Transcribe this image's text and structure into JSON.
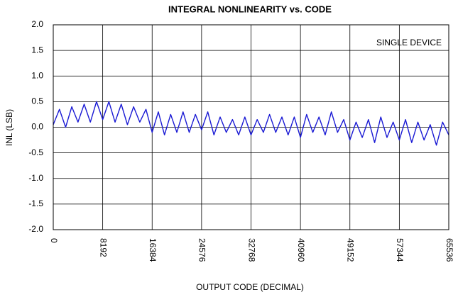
{
  "chart_data": {
    "type": "line",
    "title": "INTEGRAL NONLINEARITY vs. CODE",
    "annotation": "SINGLE DEVICE",
    "xlabel": "OUTPUT CODE (DECIMAL)",
    "ylabel": "INL (LSB)",
    "xlim": [
      0,
      65536
    ],
    "ylim": [
      -2,
      2
    ],
    "xticks": [
      0,
      8192,
      16384,
      24576,
      32768,
      40960,
      49152,
      57344,
      65536
    ],
    "yticks": [
      {
        "value": 2,
        "label": "2.0"
      },
      1.5,
      {
        "value": 1,
        "label": "1.0"
      },
      0.5,
      {
        "value": 0,
        "label": "0.0"
      },
      -0.5,
      {
        "value": -1,
        "label": "-1.0"
      },
      -1.5,
      {
        "value": -2,
        "label": "-2.0"
      }
    ],
    "grid": true,
    "x": [
      0,
      1024,
      2048,
      3072,
      4096,
      5120,
      6144,
      7168,
      8192,
      9216,
      10240,
      11264,
      12288,
      13312,
      14336,
      15360,
      16384,
      17408,
      18432,
      19456,
      20480,
      21504,
      22528,
      23552,
      24576,
      25600,
      26624,
      27648,
      28672,
      29696,
      30720,
      31744,
      32768,
      33792,
      34816,
      35840,
      36864,
      37888,
      38912,
      39936,
      40960,
      41984,
      43008,
      44032,
      45056,
      46080,
      47104,
      48128,
      49152,
      50176,
      51200,
      52224,
      53248,
      54272,
      55296,
      56320,
      57344,
      58368,
      59392,
      60416,
      61440,
      62464,
      63488,
      64512,
      65536
    ],
    "series": [
      {
        "name": "INL",
        "color": "#1a1ad4",
        "values": [
          0.05,
          0.35,
          0.0,
          0.4,
          0.1,
          0.45,
          0.1,
          0.5,
          0.15,
          0.5,
          0.1,
          0.45,
          0.05,
          0.4,
          0.1,
          0.35,
          -0.1,
          0.3,
          -0.15,
          0.25,
          -0.1,
          0.3,
          -0.1,
          0.25,
          -0.05,
          0.3,
          -0.15,
          0.2,
          -0.1,
          0.15,
          -0.15,
          0.2,
          -0.15,
          0.15,
          -0.1,
          0.25,
          -0.1,
          0.2,
          -0.15,
          0.2,
          -0.2,
          0.25,
          -0.1,
          0.2,
          -0.15,
          0.3,
          -0.1,
          0.15,
          -0.25,
          0.1,
          -0.2,
          0.15,
          -0.3,
          0.2,
          -0.2,
          0.1,
          -0.25,
          0.15,
          -0.3,
          0.1,
          -0.25,
          0.05,
          -0.35,
          0.1,
          -0.15
        ]
      }
    ]
  }
}
